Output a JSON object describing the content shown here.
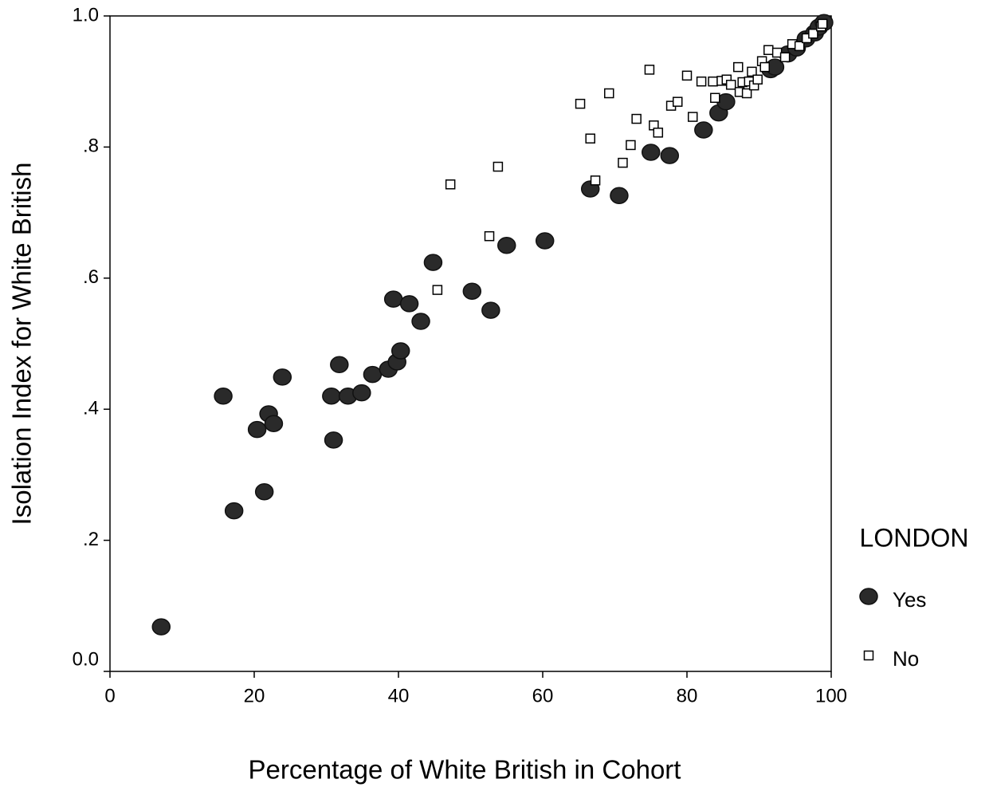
{
  "chart_data": {
    "type": "scatter",
    "x_label": "Percentage of White British in Cohort",
    "y_label": "Isolation Index for White British",
    "legend_title": "LONDON",
    "legend": "right",
    "xlim": [
      0,
      100
    ],
    "xticks": [
      0,
      20,
      40,
      60,
      80,
      100
    ],
    "ylim": [
      0,
      1
    ],
    "yticks": [
      {
        "value": 0,
        "label": "0.0"
      },
      {
        "value": 0.2,
        "label": ".2"
      },
      {
        "value": 0.4,
        "label": ".4"
      },
      {
        "value": 0.6,
        "label": ".6"
      },
      {
        "value": 0.8,
        "label": ".8"
      },
      {
        "value": 1,
        "label": "1.0"
      }
    ],
    "series": [
      {
        "name": "Yes",
        "marker": "circle",
        "color": "#2a2a2a",
        "x": [
          7.1,
          15.7,
          17.2,
          20.4,
          21.4,
          22.0,
          22.7,
          23.9,
          30.7,
          31.0,
          31.8,
          33.0,
          34.9,
          36.4,
          38.6,
          39.3,
          39.8,
          40.3,
          41.5,
          43.1,
          44.8,
          50.2,
          52.8,
          55.0,
          60.3,
          66.6,
          70.6,
          75.0,
          77.6,
          82.3,
          84.4,
          85.4,
          91.6,
          92.2,
          94.0,
          95.2,
          96.5,
          97.7,
          98.3,
          99.0
        ],
        "values": [
          0.068,
          0.42,
          0.245,
          0.369,
          0.274,
          0.393,
          0.378,
          0.449,
          0.42,
          0.353,
          0.468,
          0.42,
          0.425,
          0.453,
          0.461,
          0.568,
          0.472,
          0.489,
          0.561,
          0.534,
          0.624,
          0.58,
          0.551,
          0.65,
          0.657,
          0.736,
          0.726,
          0.792,
          0.787,
          0.826,
          0.852,
          0.869,
          0.918,
          0.922,
          0.942,
          0.951,
          0.965,
          0.974,
          0.983,
          0.99
        ]
      },
      {
        "name": "No",
        "marker": "square",
        "color": "#000000",
        "x": [
          47.2,
          53.8,
          45.4,
          52.6,
          65.2,
          66.6,
          67.3,
          69.2,
          71.1,
          72.2,
          73.0,
          74.8,
          75.4,
          76.0,
          77.8,
          78.7,
          80.0,
          80.8,
          82.0,
          83.6,
          83.9,
          84.8,
          85.5,
          86.1,
          87.1,
          87.3,
          87.7,
          88.3,
          88.6,
          89.0,
          89.3,
          89.8,
          90.4,
          90.8,
          91.3,
          92.5,
          93.6,
          94.6,
          95.6,
          96.6,
          97.5,
          98.6,
          98.8
        ],
        "values": [
          0.743,
          0.77,
          0.582,
          0.664,
          0.866,
          0.813,
          0.749,
          0.882,
          0.776,
          0.803,
          0.843,
          0.918,
          0.833,
          0.822,
          0.863,
          0.869,
          0.909,
          0.846,
          0.9,
          0.9,
          0.875,
          0.901,
          0.903,
          0.895,
          0.922,
          0.884,
          0.899,
          0.882,
          0.9,
          0.915,
          0.894,
          0.903,
          0.931,
          0.922,
          0.948,
          0.944,
          0.937,
          0.957,
          0.954,
          0.966,
          0.973,
          0.984,
          0.988
        ]
      }
    ]
  }
}
